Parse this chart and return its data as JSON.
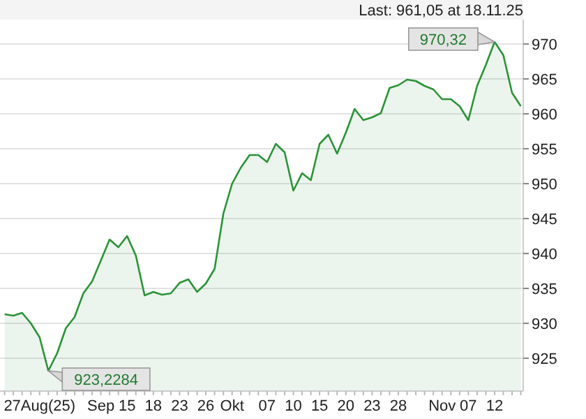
{
  "chart_data": {
    "type": "area",
    "title": "Last: 961,05 at 18.11.25",
    "categories": [
      null,
      null,
      null,
      null,
      "27Aug(25)",
      null,
      null,
      null,
      null,
      null,
      null,
      "Sep",
      null,
      null,
      "15",
      null,
      null,
      "18",
      null,
      null,
      "23",
      null,
      null,
      "26",
      null,
      null,
      "Okt",
      null,
      null,
      null,
      "07",
      null,
      null,
      "10",
      null,
      null,
      "15",
      null,
      null,
      "20",
      null,
      null,
      "23",
      null,
      null,
      "28",
      null,
      null,
      null,
      null,
      "Nov",
      null,
      null,
      "07",
      null,
      null,
      "12",
      null,
      null,
      null
    ],
    "series": [
      {
        "color": "#2a9438",
        "values": [
          931.3,
          931.1,
          931.5,
          930,
          928,
          923.2,
          925.7,
          929.3,
          930.9,
          934.3,
          936,
          939,
          942,
          940.9,
          942.5,
          939.7,
          934,
          934.5,
          934.1,
          934.3,
          935.8,
          936.3,
          934.5,
          935.7,
          937.8,
          945.7,
          950,
          952.3,
          954.1,
          954.1,
          953.1,
          955.7,
          954.5,
          949,
          951.5,
          950.5,
          955.7,
          957,
          954.3,
          957.3,
          960.7,
          959.1,
          959.5,
          960.1,
          963.7,
          964.1,
          964.9,
          964.7,
          964,
          963.5,
          962.1,
          962.1,
          961.1,
          959.1,
          964,
          967,
          970.3,
          968.4,
          963,
          961.1
        ]
      }
    ],
    "ylim": [
      920.3,
      973.5
    ],
    "yticks": [
      925,
      930,
      935,
      940,
      945,
      950,
      955,
      960,
      965,
      970
    ],
    "grid": "y",
    "annotations": [
      {
        "text": "970,32",
        "x": "12",
        "y": 970.3
      },
      "923,2284"
    ]
  }
}
